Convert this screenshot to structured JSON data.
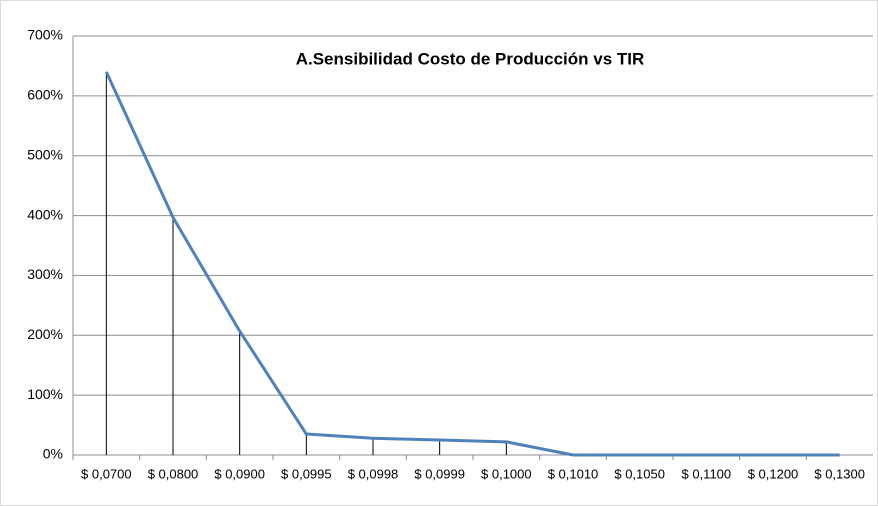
{
  "chart_data": {
    "type": "line",
    "title": "A.Sensibilidad Costo de Producción vs TIR",
    "categories": [
      "$ 0,0700",
      "$ 0,0800",
      "$ 0,0900",
      "$ 0,0995",
      "$ 0,0998",
      "$ 0,0999",
      "$ 0,1000",
      "$ 0,1010",
      "$ 0,1050",
      "$ 0,1100",
      "$ 0,1200",
      "$ 0,1300"
    ],
    "values": [
      640,
      397,
      207,
      35,
      28,
      25,
      22,
      0,
      0,
      0,
      0,
      0
    ],
    "color": "#4f81bd",
    "ylim": [
      0,
      700
    ],
    "yticks": [
      {
        "value": 0,
        "label": "0%"
      },
      {
        "value": 100,
        "label": "100%"
      },
      {
        "value": 200,
        "label": "200%"
      },
      {
        "value": 300,
        "label": "300%"
      },
      {
        "value": 400,
        "label": "400%"
      },
      {
        "value": 500,
        "label": "500%"
      },
      {
        "value": 600,
        "label": "600%"
      },
      {
        "value": 700,
        "label": "700%"
      }
    ],
    "grid": true,
    "drop_lines": true
  }
}
